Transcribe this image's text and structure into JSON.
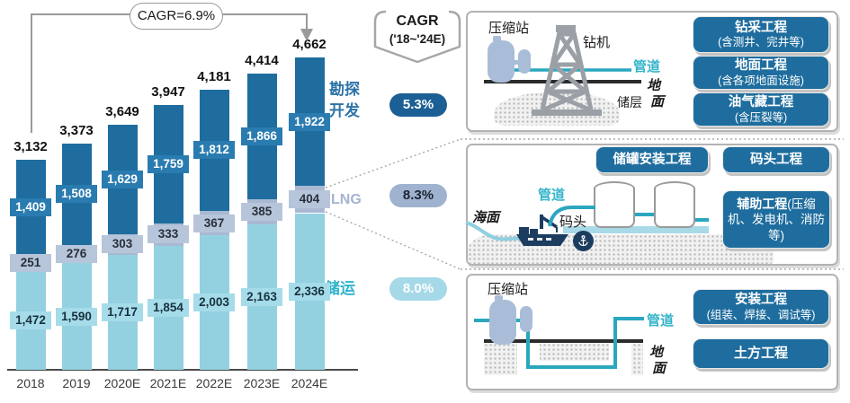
{
  "palette": {
    "dark_blue": "#1e6d9e",
    "gray_blue": "#a9b9d2",
    "light_cyan": "#93d1e1",
    "teal_pipe": "#2aa7bf",
    "navy": "#1c3c60",
    "periwinkle": "#a9bdd8",
    "derrick_gray": "#9aa0a6"
  },
  "chart_data": {
    "type": "bar",
    "stacked": true,
    "categories": [
      "2018",
      "2019",
      "2020E",
      "2021E",
      "2022E",
      "2023E",
      "2024E"
    ],
    "totals": [
      "3,132",
      "3,373",
      "3,649",
      "3,947",
      "4,181",
      "4,414",
      "4,662"
    ],
    "series": [
      {
        "name": "储运",
        "values": [
          1472,
          1590,
          1717,
          1854,
          2003,
          2163,
          2336
        ],
        "labels": [
          "1,472",
          "1,590",
          "1,717",
          "1,854",
          "2,003",
          "2,163",
          "2,336"
        ],
        "color": "#93d1e1",
        "tag_bg": "#a6dcea",
        "tag_color": "#17313d"
      },
      {
        "name": "LNG",
        "values": [
          251,
          276,
          303,
          333,
          367,
          385,
          404
        ],
        "labels": [
          "251",
          "276",
          "303",
          "333",
          "367",
          "385",
          "404"
        ],
        "color": "#a9b9d2",
        "tag_bg": "#b7c5da",
        "tag_color": "#272f3a"
      },
      {
        "name": "勘探开发",
        "values": [
          1409,
          1508,
          1629,
          1759,
          1812,
          1866,
          1922
        ],
        "labels": [
          "1,409",
          "1,508",
          "1,629",
          "1,759",
          "1,812",
          "1,866",
          "1,922"
        ],
        "color": "#1e6d9e",
        "tag_bg": "#2a7cb0",
        "tag_color": "#ffffff"
      }
    ],
    "annotations": {
      "overall_cagr": "CAGR=6.9%"
    },
    "side_labels": {
      "explore_line1": "勘探",
      "explore_line2": "开发",
      "explore_color": "#2c73a8",
      "lng": "LNG",
      "lng_color": "#a4b4d0",
      "storage": "储运",
      "storage_color": "#2fb3cb"
    }
  },
  "cagr_column": {
    "title": "CAGR",
    "subtitle": "('18~'24E)",
    "pills": [
      {
        "value": "5.3%",
        "bg": "#1c5f95",
        "color": "#ffffff"
      },
      {
        "value": "8.3%",
        "bg": "#9fb2cf",
        "color": "#1c2430"
      },
      {
        "value": "8.0%",
        "bg": "#a5d9e8",
        "color": "#ffffff"
      }
    ]
  },
  "panels": {
    "drilling": {
      "labels": {
        "station": "压缩站",
        "rig": "钻机",
        "pipe": "管道",
        "ground_top": "地",
        "ground_bottom": "面",
        "reservoir": "储层"
      },
      "boxes": [
        {
          "title": "钻采工程",
          "sub": "(含测井、完井等)"
        },
        {
          "title": "地面工程",
          "sub": "(含各项地面设施)"
        },
        {
          "title": "油气藏工程",
          "sub": "(含压裂等)"
        }
      ]
    },
    "lng": {
      "labels": {
        "sea": "海面",
        "pipe": "管道",
        "dock": "码头"
      },
      "boxes": [
        {
          "title": "储罐安装工程"
        },
        {
          "title": "码头工程"
        },
        {
          "title": "辅助工程",
          "sub": "(压缩机、发电机、消防等)"
        }
      ]
    },
    "storage": {
      "labels": {
        "station": "压缩站",
        "pipe": "管道",
        "ground_top": "地",
        "ground_bottom": "面"
      },
      "boxes": [
        {
          "title": "安装工程",
          "sub": "(组装、焊接、调试等)"
        },
        {
          "title": "土方工程"
        }
      ]
    }
  }
}
